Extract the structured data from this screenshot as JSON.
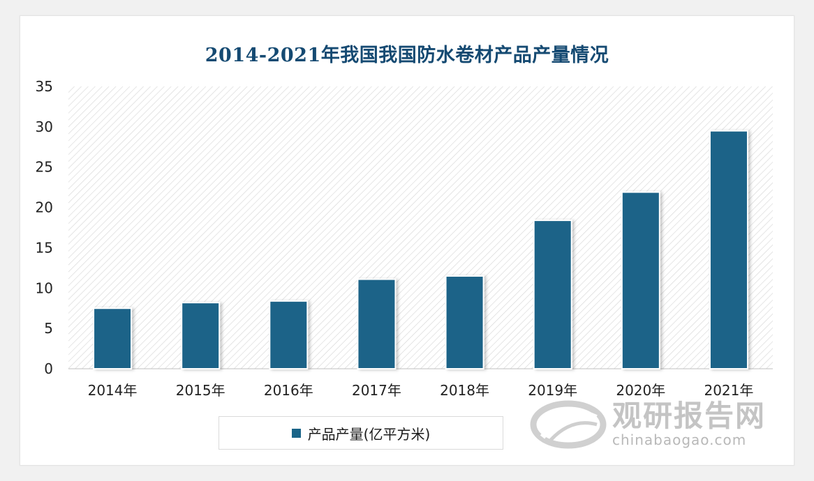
{
  "colors": {
    "bar": "#1a6488",
    "title": "#154a72",
    "axis_text": "#222222",
    "hatch": "#d4d4d4"
  },
  "chart_data": {
    "type": "bar",
    "title": "2014-2021年我国我国防水卷材产品产量情况",
    "categories": [
      "2014年",
      "2015年",
      "2016年",
      "2017年",
      "2018年",
      "2019年",
      "2020年",
      "2021年"
    ],
    "series": [
      {
        "name": "产品产量(亿平方米)",
        "values": [
          7.5,
          8.2,
          8.4,
          11.1,
          11.5,
          18.4,
          21.9,
          29.5
        ]
      }
    ],
    "ylim": [
      0,
      35
    ],
    "yticks": [
      0,
      5,
      10,
      15,
      20,
      25,
      30,
      35
    ],
    "xlabel": "",
    "ylabel": "",
    "grid": false,
    "legend": "bottom"
  },
  "watermark": {
    "brand": "观研报告网",
    "domain": "chinabaogao.com"
  }
}
